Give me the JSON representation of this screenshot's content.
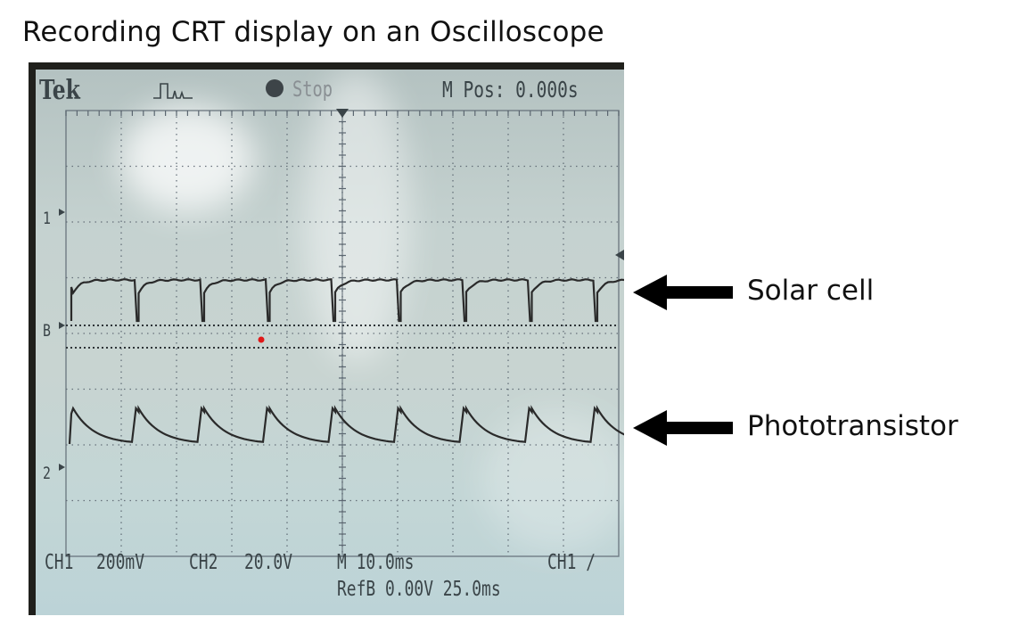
{
  "title": "Recording CRT display on an Oscilloscope",
  "scope": {
    "brand": "Tek",
    "run_state": "Stop",
    "m_pos": "M Pos: 0.000s",
    "markers": {
      "ch1": "1",
      "refb": "B",
      "ch2": "2"
    },
    "readout": {
      "ch1_label": "CH1",
      "ch1_scale": "200mV",
      "ch2_label": "CH2",
      "ch2_scale": "20.0V",
      "timebase": "M 10.0ms",
      "trigger": "CH1 ∕",
      "refb": "RefB 0.00V 25.0ms"
    },
    "colors": {
      "screen": "#c5d2d0",
      "trace": "#2a2a2a",
      "grid": "#5b6670",
      "bezel": "#20201c"
    }
  },
  "annotations": [
    {
      "label": "Solar cell"
    },
    {
      "label": "Phototransistor"
    }
  ]
}
